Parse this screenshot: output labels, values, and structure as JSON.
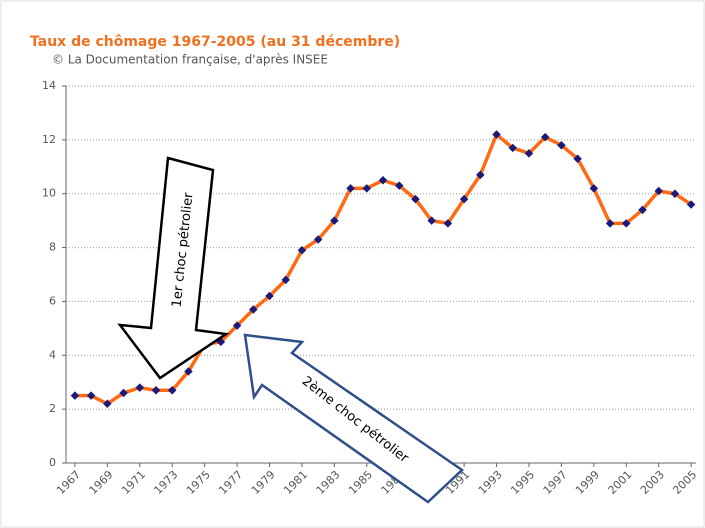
{
  "chart_data": {
    "type": "line",
    "title": "Taux de chômage 1967-2005 (au 31 décembre)",
    "subtitle": "© La Documentation française, d'après INSEE",
    "x": [
      1967,
      1968,
      1969,
      1970,
      1971,
      1972,
      1973,
      1974,
      1975,
      1976,
      1977,
      1978,
      1979,
      1980,
      1981,
      1982,
      1983,
      1984,
      1985,
      1986,
      1987,
      1988,
      1989,
      1990,
      1991,
      1992,
      1993,
      1994,
      1995,
      1996,
      1997,
      1998,
      1999,
      2000,
      2001,
      2002,
      2003,
      2004,
      2005
    ],
    "series": [
      {
        "color": "#ff6a13",
        "marker_color": "#1a1a7a",
        "values": [
          2.5,
          2.5,
          2.2,
          2.6,
          2.8,
          2.7,
          2.7,
          3.4,
          4.4,
          4.5,
          5.1,
          5.7,
          6.2,
          6.8,
          7.9,
          8.3,
          9.0,
          10.2,
          10.2,
          10.5,
          10.3,
          9.8,
          9.0,
          8.9,
          9.8,
          10.7,
          12.2,
          11.7,
          11.5,
          12.1,
          11.8,
          11.3,
          10.2,
          8.9,
          8.9,
          9.4,
          10.1,
          10.0,
          9.6
        ]
      }
    ],
    "xlim": [
      1966.45,
      2005.3
    ],
    "xticks": [
      1967,
      1969,
      1971,
      1973,
      1975,
      1977,
      1979,
      1981,
      1983,
      1985,
      1987,
      1989,
      1991,
      1993,
      1995,
      1997,
      1999,
      2001,
      2003,
      2005
    ],
    "ylim": [
      0,
      14
    ],
    "yticks": [
      0,
      2,
      4,
      6,
      8,
      10,
      12,
      14
    ],
    "grid": true,
    "annotations": [
      {
        "text": "1er choc pétrolier"
      },
      {
        "text": "2ème choc pétrolier"
      }
    ]
  }
}
